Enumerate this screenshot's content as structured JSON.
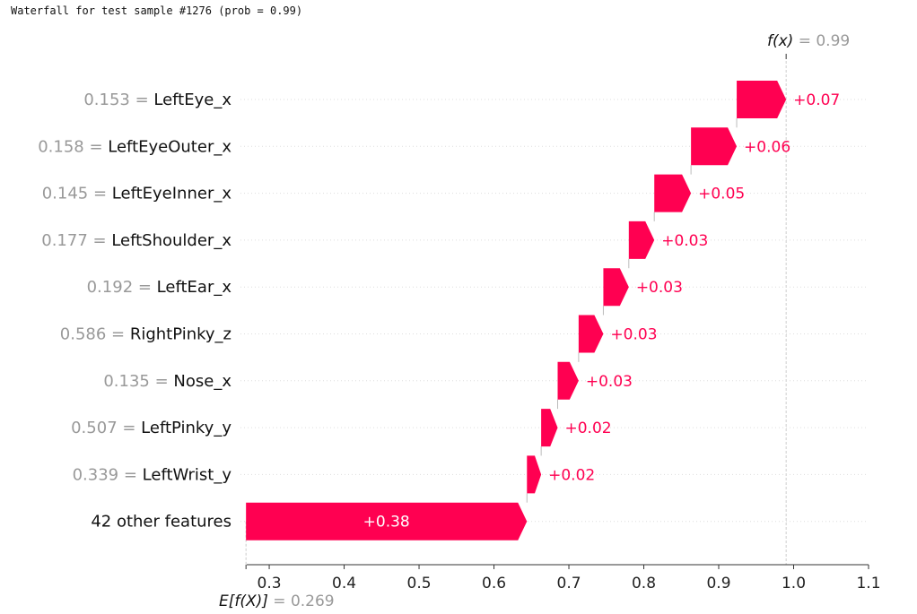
{
  "header": {
    "title": "Waterfall for test sample #1276 (prob = 0.99)"
  },
  "chart_data": {
    "type": "waterfall",
    "base_value": 0.269,
    "base_value_label": "0.269",
    "base_label": "E[f(X)] =",
    "final_value": 0.99,
    "final_value_label": "0.99",
    "final_label": "f(x) =",
    "xlim": [
      0.27,
      1.1
    ],
    "xticks": [
      0.3,
      0.4,
      0.5,
      0.6,
      0.7,
      0.8,
      0.9,
      1.0,
      1.1
    ],
    "xtick_labels": [
      "0.3",
      "0.4",
      "0.5",
      "0.6",
      "0.7",
      "0.8",
      "0.9",
      "1.0",
      "1.1"
    ],
    "bar_color": "#ff0051",
    "features": [
      {
        "value": "0.153",
        "name": "LeftEye_x",
        "contribution": 0.066,
        "label": "+0.07"
      },
      {
        "value": "0.158",
        "name": "LeftEyeOuter_x",
        "contribution": 0.061,
        "label": "+0.06"
      },
      {
        "value": "0.145",
        "name": "LeftEyeInner_x",
        "contribution": 0.049,
        "label": "+0.05"
      },
      {
        "value": "0.177",
        "name": "LeftShoulder_x",
        "contribution": 0.034,
        "label": "+0.03"
      },
      {
        "value": "0.192",
        "name": "LeftEar_x",
        "contribution": 0.034,
        "label": "+0.03"
      },
      {
        "value": "0.586",
        "name": "RightPinky_z",
        "contribution": 0.033,
        "label": "+0.03"
      },
      {
        "value": "0.135",
        "name": "Nose_x",
        "contribution": 0.028,
        "label": "+0.03"
      },
      {
        "value": "0.507",
        "name": "LeftPinky_y",
        "contribution": 0.022,
        "label": "+0.02"
      },
      {
        "value": "0.339",
        "name": "LeftWrist_y",
        "contribution": 0.019,
        "label": "+0.02"
      },
      {
        "value": "",
        "name": "42 other features",
        "contribution": 0.375,
        "label": "+0.38"
      }
    ]
  }
}
